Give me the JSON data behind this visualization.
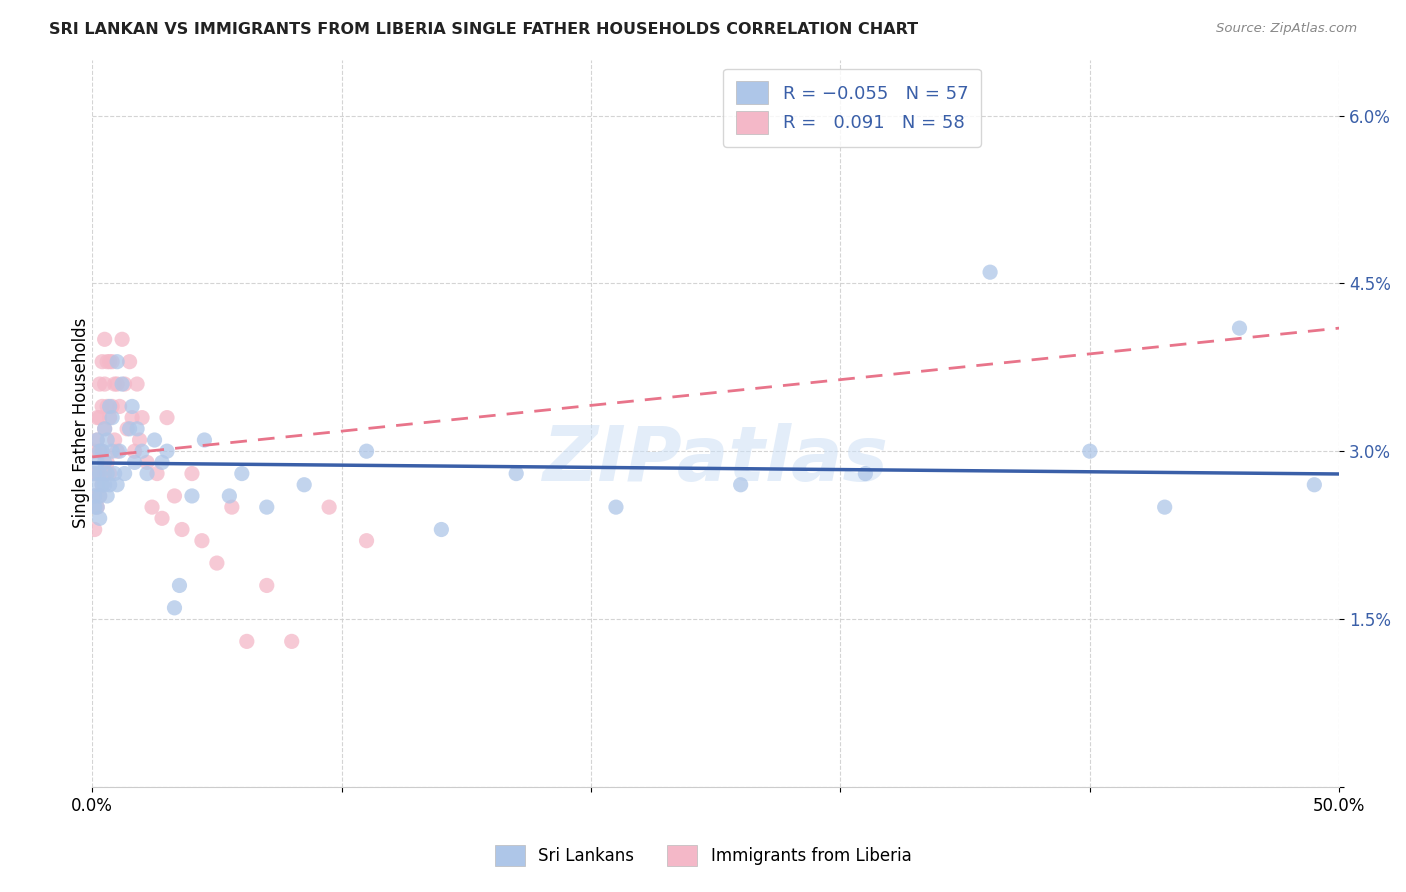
{
  "title": "SRI LANKAN VS IMMIGRANTS FROM LIBERIA SINGLE FATHER HOUSEHOLDS CORRELATION CHART",
  "source": "Source: ZipAtlas.com",
  "ylabel": "Single Father Households",
  "ytick_vals": [
    0.0,
    0.015,
    0.03,
    0.045,
    0.06
  ],
  "ytick_labels": [
    "",
    "1.5%",
    "3.0%",
    "4.5%",
    "6.0%"
  ],
  "xlim": [
    0.0,
    0.5
  ],
  "ylim": [
    0.0,
    0.065
  ],
  "sri_lankans_R": -0.055,
  "liberia_R": 0.091,
  "watermark": "ZIPatlas",
  "sri_lankans_x": [
    0.001,
    0.001,
    0.001,
    0.002,
    0.002,
    0.002,
    0.002,
    0.003,
    0.003,
    0.003,
    0.003,
    0.004,
    0.004,
    0.005,
    0.005,
    0.005,
    0.006,
    0.006,
    0.006,
    0.007,
    0.007,
    0.008,
    0.008,
    0.009,
    0.01,
    0.01,
    0.011,
    0.012,
    0.013,
    0.015,
    0.016,
    0.017,
    0.018,
    0.02,
    0.022,
    0.025,
    0.028,
    0.03,
    0.033,
    0.035,
    0.04,
    0.045,
    0.055,
    0.06,
    0.07,
    0.085,
    0.11,
    0.14,
    0.17,
    0.21,
    0.26,
    0.31,
    0.36,
    0.4,
    0.43,
    0.46,
    0.49
  ],
  "sri_lankans_y": [
    0.028,
    0.026,
    0.025,
    0.031,
    0.029,
    0.027,
    0.025,
    0.03,
    0.028,
    0.026,
    0.024,
    0.03,
    0.027,
    0.032,
    0.029,
    0.027,
    0.031,
    0.028,
    0.026,
    0.034,
    0.027,
    0.033,
    0.03,
    0.028,
    0.038,
    0.027,
    0.03,
    0.036,
    0.028,
    0.032,
    0.034,
    0.029,
    0.032,
    0.03,
    0.028,
    0.031,
    0.029,
    0.03,
    0.016,
    0.018,
    0.026,
    0.031,
    0.026,
    0.028,
    0.025,
    0.027,
    0.03,
    0.023,
    0.028,
    0.025,
    0.027,
    0.028,
    0.046,
    0.03,
    0.025,
    0.041,
    0.027
  ],
  "liberia_x": [
    0.001,
    0.001,
    0.001,
    0.001,
    0.002,
    0.002,
    0.002,
    0.002,
    0.003,
    0.003,
    0.003,
    0.003,
    0.004,
    0.004,
    0.004,
    0.004,
    0.005,
    0.005,
    0.005,
    0.005,
    0.006,
    0.006,
    0.006,
    0.007,
    0.007,
    0.007,
    0.008,
    0.008,
    0.009,
    0.009,
    0.01,
    0.01,
    0.011,
    0.012,
    0.013,
    0.014,
    0.015,
    0.016,
    0.017,
    0.018,
    0.019,
    0.02,
    0.022,
    0.024,
    0.026,
    0.028,
    0.03,
    0.033,
    0.036,
    0.04,
    0.044,
    0.05,
    0.056,
    0.062,
    0.07,
    0.08,
    0.095,
    0.11
  ],
  "liberia_y": [
    0.03,
    0.028,
    0.026,
    0.023,
    0.033,
    0.031,
    0.028,
    0.025,
    0.036,
    0.033,
    0.03,
    0.026,
    0.038,
    0.034,
    0.03,
    0.027,
    0.04,
    0.036,
    0.032,
    0.028,
    0.038,
    0.034,
    0.029,
    0.038,
    0.033,
    0.028,
    0.038,
    0.034,
    0.036,
    0.031,
    0.036,
    0.03,
    0.034,
    0.04,
    0.036,
    0.032,
    0.038,
    0.033,
    0.03,
    0.036,
    0.031,
    0.033,
    0.029,
    0.025,
    0.028,
    0.024,
    0.033,
    0.026,
    0.023,
    0.028,
    0.022,
    0.02,
    0.025,
    0.013,
    0.018,
    0.013,
    0.025,
    0.022
  ],
  "sri_color": "#aec6e8",
  "lib_color": "#f4b8c8",
  "sri_line_color": "#3a5fa8",
  "lib_line_color": "#e8748a",
  "background_color": "#ffffff",
  "grid_color": "#d0d0d0"
}
